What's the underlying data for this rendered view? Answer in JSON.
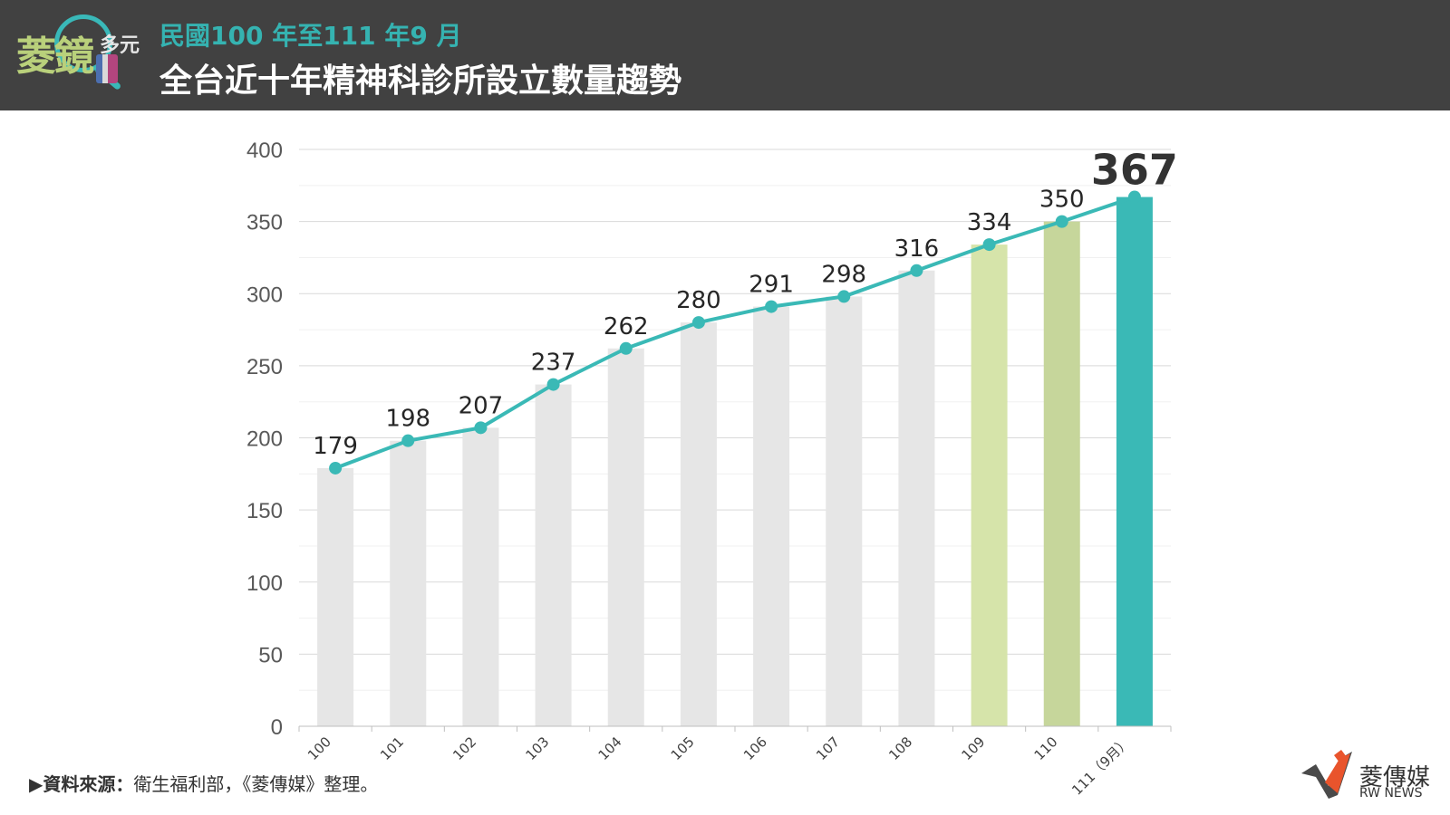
{
  "header": {
    "logo_text": "菱鏡",
    "logo_sub": "多元",
    "subtitle": "民國100 年至111 年9 月",
    "title": "全台近十年精神科診所設立數量趨勢"
  },
  "source": {
    "label": "▶資料來源：",
    "text": "衛生福利部，《菱傳媒》整理。"
  },
  "brand": {
    "name": "菱傳媒",
    "english": "RW NEWS"
  },
  "colors": {
    "header_bg": "#414141",
    "accent_teal": "#35b3b1",
    "bar_gray": "#e6e6e6",
    "bar_light_green": "#d6e4aa",
    "bar_green": "#c6d69b",
    "line_teal": "#3ab9b6"
  },
  "chart_data": {
    "type": "bar",
    "categories": [
      "100",
      "101",
      "102",
      "103",
      "104",
      "105",
      "106",
      "107",
      "108",
      "109",
      "110",
      "111（9月）"
    ],
    "values": [
      179,
      198,
      207,
      237,
      262,
      280,
      291,
      298,
      316,
      334,
      350,
      367
    ],
    "bar_colors": [
      "#e6e6e6",
      "#e6e6e6",
      "#e6e6e6",
      "#e6e6e6",
      "#e6e6e6",
      "#e6e6e6",
      "#e6e6e6",
      "#e6e6e6",
      "#e6e6e6",
      "#d6e4aa",
      "#c6d69b",
      "#3ab9b6"
    ],
    "overlay_line": {
      "values": [
        179,
        198,
        207,
        237,
        262,
        280,
        291,
        298,
        316,
        334,
        350,
        367
      ],
      "color": "#3ab9b6"
    },
    "data_labels": [
      "179",
      "198",
      "207",
      "237",
      "262",
      "280",
      "291",
      "298",
      "316",
      "334",
      "350",
      "367"
    ],
    "yticks": [
      "0",
      "50",
      "100",
      "150",
      "200",
      "250",
      "300",
      "350",
      "400"
    ],
    "ylim": [
      0,
      400
    ],
    "grid": true,
    "legend": "none",
    "title": "全台近十年精神科診所設立數量趨勢"
  }
}
